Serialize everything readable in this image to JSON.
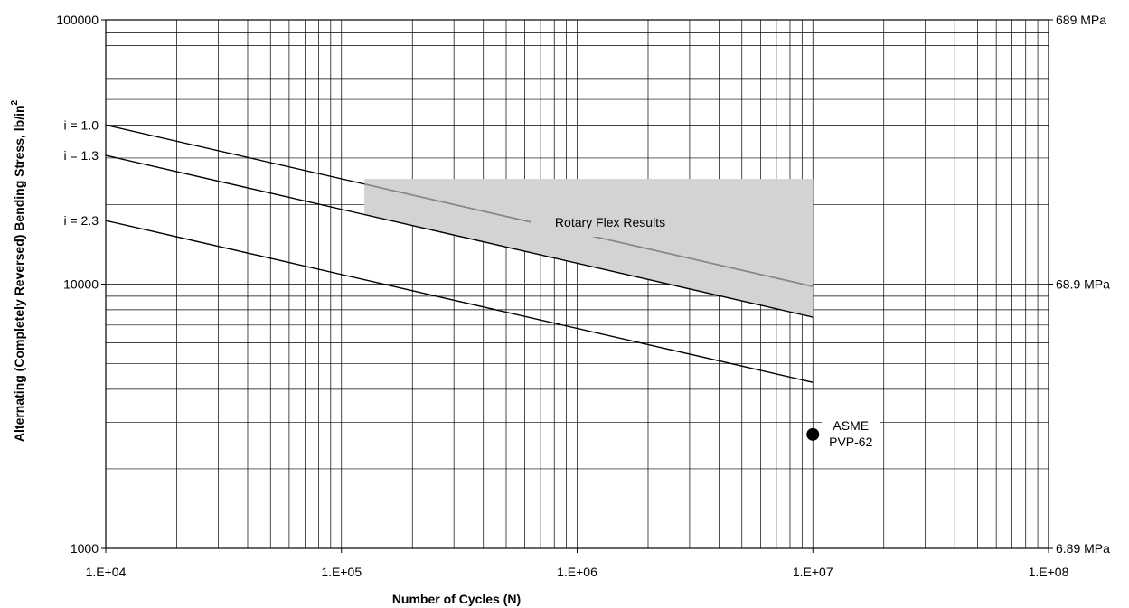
{
  "chart_data": {
    "type": "line",
    "title": "",
    "xlabel": "Number of Cycles (N)",
    "ylabel": "Alternating (Completely Reversed) Bending Stress, lb/in",
    "ylabel_sup": "2",
    "x_scale": "log",
    "y_scale": "log",
    "xlim": [
      10000,
      100000000
    ],
    "ylim": [
      1000,
      100000
    ],
    "grid": true,
    "legend": "none",
    "x_ticks": [
      {
        "value": 10000,
        "label": "1.E+04"
      },
      {
        "value": 100000,
        "label": "1.E+05"
      },
      {
        "value": 1000000,
        "label": "1.E+06"
      },
      {
        "value": 10000000,
        "label": "1.E+07"
      },
      {
        "value": 100000000,
        "label": "1.E+08"
      }
    ],
    "y_ticks": [
      {
        "value": 1000,
        "label": "1000"
      },
      {
        "value": 10000,
        "label": "10000"
      },
      {
        "value": 100000,
        "label": "100000"
      }
    ],
    "y2_ticks": [
      {
        "value": 1000,
        "label": "6.89 MPa"
      },
      {
        "value": 10000,
        "label": "68.9 MPa"
      },
      {
        "value": 100000,
        "label": "689 MPa"
      }
    ],
    "series": [
      {
        "name": "i = 1.0",
        "color": "#000000",
        "x": [
          10000,
          10000000
        ],
        "y": [
          40000,
          9800
        ]
      },
      {
        "name": "i = 1.3",
        "color": "#000000",
        "x": [
          10000,
          10000000
        ],
        "y": [
          30700,
          7500
        ]
      },
      {
        "name": "i = 2.3",
        "color": "#000000",
        "x": [
          10000,
          10000000
        ],
        "y": [
          17400,
          4250
        ]
      }
    ],
    "band": {
      "label": "Rotary Flex Results",
      "fill": "#d3d3d3",
      "x_range": [
        125000,
        10000000
      ],
      "y_top": 25000,
      "lower_edge": "i = 1.3"
    },
    "points": [
      {
        "label_lines": [
          "ASME",
          "PVP-62"
        ],
        "x": 10000000,
        "y": 2700,
        "color": "#000000"
      }
    ]
  }
}
